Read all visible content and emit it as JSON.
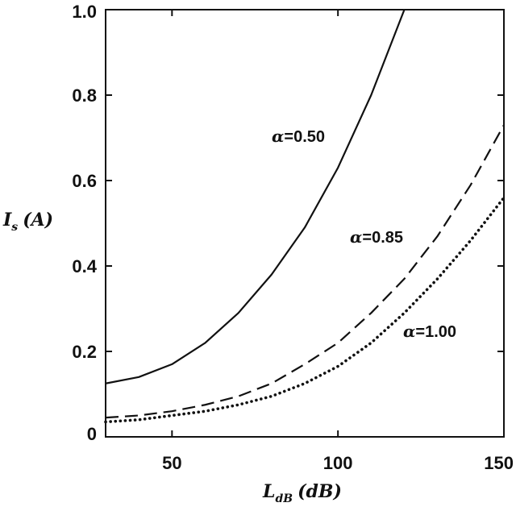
{
  "chart_data": {
    "type": "line",
    "x_axis": {
      "label_main": "L",
      "label_sub": "dB",
      "label_unit": "(dB)",
      "range": [
        30,
        150
      ],
      "ticks": [
        {
          "value": 50,
          "label": "50"
        },
        {
          "value": 100,
          "label": "100"
        },
        {
          "value": 150,
          "label": "150"
        }
      ]
    },
    "y_axis": {
      "label_main": "I",
      "label_sub": "s",
      "label_unit": "(A)",
      "range": [
        0,
        1.0
      ],
      "ticks": [
        {
          "value": 0,
          "label": "0"
        },
        {
          "value": 0.2,
          "label": "0.2"
        },
        {
          "value": 0.4,
          "label": "0.4"
        },
        {
          "value": 0.6,
          "label": "0.6"
        },
        {
          "value": 0.8,
          "label": "0.8"
        },
        {
          "value": 1.0,
          "label": "1.0"
        }
      ]
    },
    "grid": false,
    "series": [
      {
        "name": "α=0.50",
        "symbol": "α",
        "value_text": "=0.50",
        "style": "solid",
        "x": [
          30,
          40,
          50,
          60,
          70,
          80,
          90,
          100,
          110,
          120
        ],
        "y": [
          0.125,
          0.14,
          0.17,
          0.22,
          0.29,
          0.38,
          0.49,
          0.63,
          0.8,
          1.0
        ]
      },
      {
        "name": "α=0.85",
        "symbol": "α",
        "value_text": "=0.85",
        "style": "dashed",
        "x": [
          30,
          40,
          50,
          60,
          70,
          80,
          90,
          100,
          110,
          120,
          130,
          140,
          150
        ],
        "y": [
          0.045,
          0.05,
          0.06,
          0.075,
          0.095,
          0.125,
          0.17,
          0.22,
          0.29,
          0.37,
          0.47,
          0.59,
          0.73
        ]
      },
      {
        "name": "α=1.00",
        "symbol": "α",
        "value_text": "=1.00",
        "style": "dotted",
        "x": [
          30,
          40,
          50,
          60,
          70,
          80,
          90,
          100,
          110,
          120,
          130,
          140,
          150
        ],
        "y": [
          0.035,
          0.04,
          0.05,
          0.06,
          0.075,
          0.095,
          0.125,
          0.165,
          0.22,
          0.29,
          0.37,
          0.46,
          0.56
        ]
      }
    ]
  }
}
